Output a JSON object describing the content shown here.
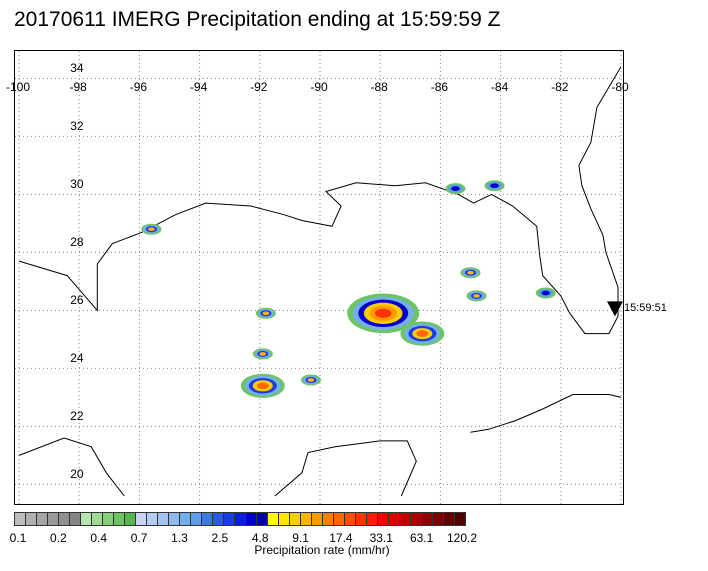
{
  "title": "20170611 IMERG Precipitation ending at 15:59:59 Z",
  "lon_labels": [
    "-100",
    "-98",
    "-96",
    "-94",
    "-92",
    "-90",
    "-88",
    "-86",
    "-84",
    "-82",
    "-80"
  ],
  "lat_labels": [
    "34",
    "32",
    "30",
    "28",
    "26",
    "24",
    "22",
    "20"
  ],
  "time_label": "15:59:51",
  "colorbar": {
    "title": "Precipitation rate (mm/hr)",
    "labels": [
      "0.1",
      "0.2",
      "0.4",
      "0.7",
      "1.3",
      "2.5",
      "4.8",
      "9.1",
      "17.4",
      "33.1",
      "63.1",
      "120.2"
    ],
    "colors": [
      "#bdbdbd",
      "#b0b0b0",
      "#a5a5a5",
      "#9a9a9a",
      "#8f8f8f",
      "#858585",
      "#b9e6b0",
      "#9fdb95",
      "#86cf7c",
      "#6dc463",
      "#57b64e",
      "#c9d4f5",
      "#b6cdf3",
      "#a2c4f1",
      "#8cbaf0",
      "#74aeee",
      "#5c9eea",
      "#3a7be0",
      "#2a5ce0",
      "#1a3de0",
      "#0a1ed8",
      "#0000c8",
      "#0000a8",
      "#ffff00",
      "#ffe600",
      "#ffcc00",
      "#ffb300",
      "#ff9900",
      "#ff8000",
      "#ff6600",
      "#ff4d00",
      "#ff3300",
      "#ff1a00",
      "#f00000",
      "#d80000",
      "#c00000",
      "#a80000",
      "#900000",
      "#780000",
      "#600000",
      "#500000"
    ]
  },
  "map": {
    "lon_range": [
      -100,
      -80
    ],
    "lat_range": [
      19.5,
      35
    ],
    "storms": [
      {
        "lon": -95.6,
        "lat": 28.8,
        "intensity": 2
      },
      {
        "lon": -91.8,
        "lat": 25.9,
        "intensity": 2
      },
      {
        "lon": -91.9,
        "lat": 24.5,
        "intensity": 2
      },
      {
        "lon": -91.9,
        "lat": 23.4,
        "intensity": 3
      },
      {
        "lon": -90.3,
        "lat": 23.6,
        "intensity": 2
      },
      {
        "lon": -87.9,
        "lat": 25.9,
        "intensity": 4
      },
      {
        "lon": -86.6,
        "lat": 25.2,
        "intensity": 3
      },
      {
        "lon": -85.0,
        "lat": 27.3,
        "intensity": 2
      },
      {
        "lon": -84.8,
        "lat": 26.5,
        "intensity": 2
      },
      {
        "lon": -85.5,
        "lat": 30.2,
        "intensity": 1
      },
      {
        "lon": -84.2,
        "lat": 30.3,
        "intensity": 1
      },
      {
        "lon": -82.5,
        "lat": 26.6,
        "intensity": 1
      }
    ]
  }
}
